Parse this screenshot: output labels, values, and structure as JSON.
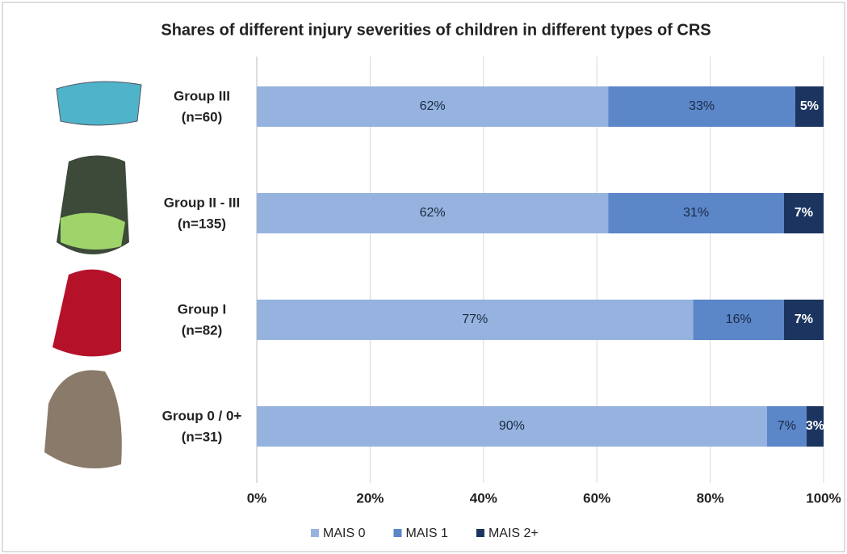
{
  "chart_data": {
    "type": "stacked-bar-horizontal",
    "title": "Shares of different injury severities of children in different types of CRS",
    "categories": [
      [
        "Group III",
        "(n=60)"
      ],
      [
        "Group II - III",
        "(n=135)"
      ],
      [
        "Group I",
        "(n=82)"
      ],
      [
        "Group 0 / 0+",
        "(n=31)"
      ]
    ],
    "series": [
      {
        "name": "MAIS 0",
        "color": "#95b3de",
        "values": [
          62,
          62,
          77,
          90
        ],
        "value_labels": [
          "62%",
          "62%",
          "77%",
          "90%"
        ]
      },
      {
        "name": "MAIS 1",
        "color": "#5b86c8",
        "values": [
          33,
          31,
          16,
          7
        ],
        "value_labels": [
          "33%",
          "31%",
          "16%",
          "7%"
        ]
      },
      {
        "name": "MAIS 2+",
        "color": "#1c3560",
        "values": [
          5,
          7,
          7,
          3
        ],
        "value_labels": [
          "5%",
          "7%",
          "7%",
          "3%"
        ]
      }
    ],
    "xlim": [
      0,
      100
    ],
    "xticks": [
      {
        "value": 0,
        "label": "0%"
      },
      {
        "value": 20,
        "label": "20%"
      },
      {
        "value": 40,
        "label": "40%"
      },
      {
        "value": 60,
        "label": "60%"
      },
      {
        "value": 80,
        "label": "80%"
      },
      {
        "value": 100,
        "label": "100%"
      }
    ],
    "grid": true,
    "legend": "bottom"
  }
}
